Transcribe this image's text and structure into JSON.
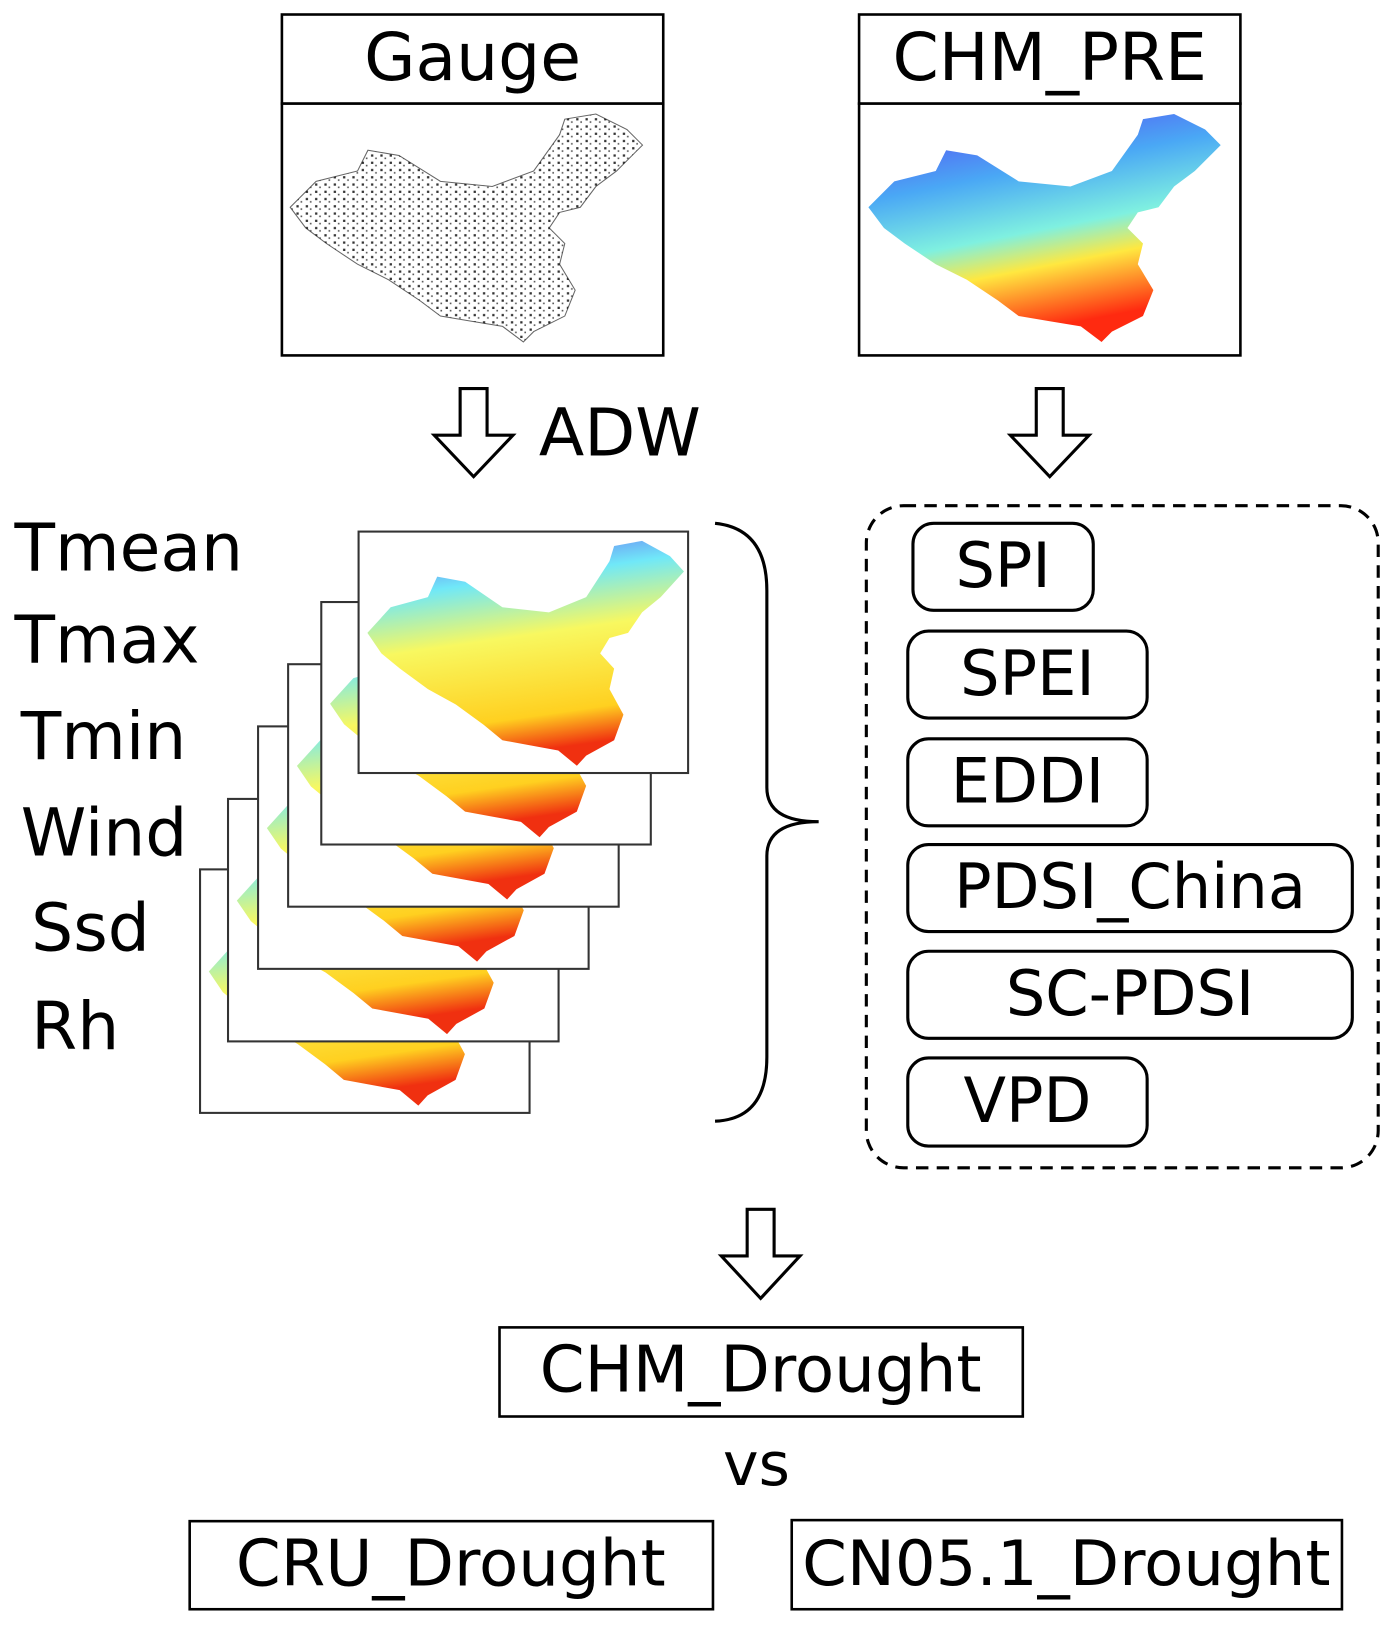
{
  "panels": {
    "gauge": "Gauge",
    "chm_pre": "CHM_PRE"
  },
  "method": "ADW",
  "variables": [
    "Tmean",
    "Tmax",
    "Tmin",
    "Wind",
    "Ssd",
    "Rh"
  ],
  "indices": [
    "SPI",
    "SPEI",
    "EDDI",
    "PDSI_China",
    "SC-PDSI",
    "VPD"
  ],
  "output": "CHM_Drought",
  "comparison": "vs",
  "references": [
    "CRU_Drought",
    "CN05.1_Drought"
  ]
}
